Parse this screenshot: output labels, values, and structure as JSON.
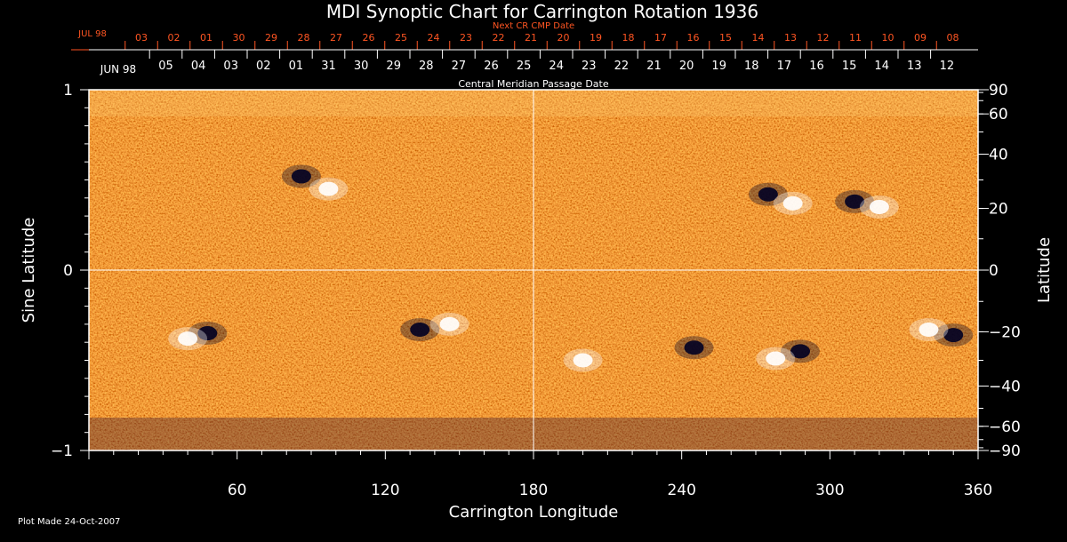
{
  "chart_data": {
    "type": "heatmap",
    "title": "MDI Synoptic Chart for Carrington Rotation 1936",
    "xlabel": "Carrington Longitude",
    "ylabel_left": "Sine Latitude",
    "ylabel_right": "Latitude",
    "xlim": [
      0,
      360
    ],
    "ylim": [
      -1,
      1
    ],
    "x_ticks": [
      60,
      120,
      180,
      240,
      300,
      360
    ],
    "left_y_ticks": [
      -1,
      0,
      1
    ],
    "right_y_ticks": [
      90,
      60,
      40,
      20,
      0,
      -20,
      -40,
      -60,
      -90
    ],
    "grid_lines": {
      "longitude": 180,
      "sine_latitude": 0
    },
    "top_axis_label": "Central Meridian Passage Date",
    "top_axis_dates": {
      "month_label": "JUN 98",
      "labels": [
        "05",
        "04",
        "03",
        "02",
        "01",
        "31",
        "30",
        "29",
        "28",
        "27",
        "26",
        "25",
        "24",
        "23",
        "22",
        "21",
        "20",
        "19",
        "18",
        "17",
        "16",
        "15",
        "14",
        "13",
        "12"
      ]
    },
    "next_cr_axis": {
      "label": "Next CR CMP Date",
      "month_label": "JUL 98",
      "labels": [
        "03",
        "02",
        "01",
        "30",
        "29",
        "28",
        "27",
        "26",
        "25",
        "24",
        "23",
        "22",
        "21",
        "20",
        "19",
        "18",
        "17",
        "16",
        "15",
        "14",
        "13",
        "12",
        "11",
        "10",
        "09",
        "08"
      ],
      "color": "#ff5522"
    },
    "colors": {
      "background_field": "#ee4a12",
      "positive_flux": "#ffffff",
      "negative_flux": "#000022",
      "axis": "#ffffff"
    },
    "active_regions": [
      {
        "lon": 86,
        "sinlat": 0.52,
        "polarity": "negative"
      },
      {
        "lon": 97,
        "sinlat": 0.45,
        "polarity": "positive"
      },
      {
        "lon": 48,
        "sinlat": -0.35,
        "polarity": "negative"
      },
      {
        "lon": 40,
        "sinlat": -0.38,
        "polarity": "positive"
      },
      {
        "lon": 134,
        "sinlat": -0.33,
        "polarity": "negative"
      },
      {
        "lon": 146,
        "sinlat": -0.3,
        "polarity": "positive"
      },
      {
        "lon": 275,
        "sinlat": 0.42,
        "polarity": "negative"
      },
      {
        "lon": 285,
        "sinlat": 0.37,
        "polarity": "positive"
      },
      {
        "lon": 310,
        "sinlat": 0.38,
        "polarity": "negative"
      },
      {
        "lon": 320,
        "sinlat": 0.35,
        "polarity": "positive"
      },
      {
        "lon": 288,
        "sinlat": -0.45,
        "polarity": "negative"
      },
      {
        "lon": 278,
        "sinlat": -0.49,
        "polarity": "positive"
      },
      {
        "lon": 245,
        "sinlat": -0.43,
        "polarity": "negative"
      },
      {
        "lon": 350,
        "sinlat": -0.36,
        "polarity": "negative"
      },
      {
        "lon": 340,
        "sinlat": -0.33,
        "polarity": "positive"
      },
      {
        "lon": 200,
        "sinlat": -0.5,
        "polarity": "positive"
      }
    ]
  },
  "footer": {
    "plot_made": "Plot Made 24-Oct-2007"
  }
}
